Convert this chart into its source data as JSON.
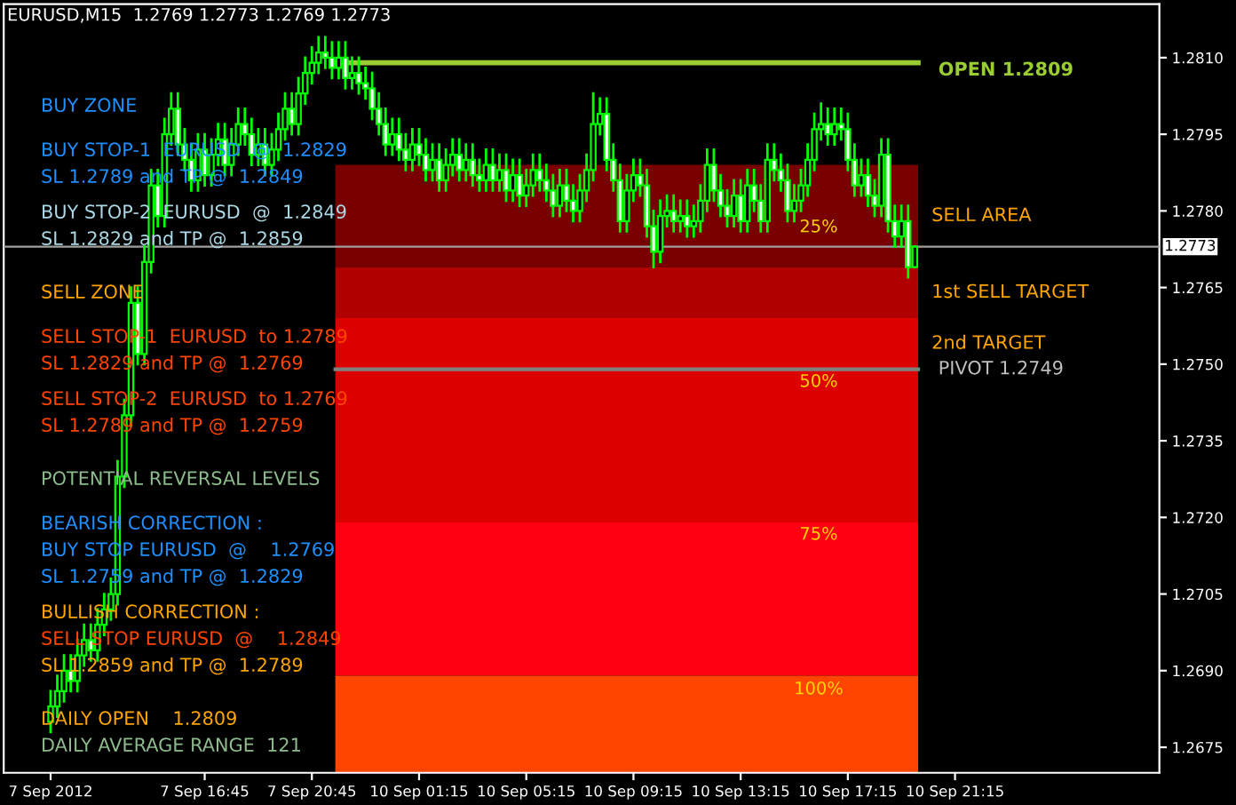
{
  "chart_data": {
    "type": "candlestick",
    "title": "EURUSD,M15  1.2769 1.2773 1.2769 1.2773",
    "categories": [
      "7 Sep 2012",
      null,
      null,
      null,
      null,
      null,
      null,
      null,
      null,
      null,
      null,
      null,
      null,
      null,
      null,
      null,
      null,
      null,
      null,
      null,
      null,
      null,
      null,
      "7 Sep 16:45",
      null,
      null,
      null,
      null,
      null,
      null,
      null,
      null,
      null,
      null,
      null,
      null,
      null,
      null,
      null,
      "7 Sep 20:45",
      null,
      null,
      null,
      null,
      null,
      null,
      null,
      null,
      null,
      null,
      null,
      null,
      null,
      null,
      null,
      "10 Sep 01:15",
      null,
      null,
      null,
      null,
      null,
      null,
      null,
      null,
      null,
      null,
      null,
      null,
      null,
      null,
      null,
      "10 Sep 05:15",
      null,
      null,
      null,
      null,
      null,
      null,
      null,
      null,
      null,
      null,
      null,
      null,
      null,
      null,
      null,
      "10 Sep 09:15",
      null,
      null,
      null,
      null,
      null,
      null,
      null,
      null,
      null,
      null,
      null,
      null,
      null,
      null,
      null,
      "10 Sep 13:15",
      null,
      null,
      null,
      null,
      null,
      null,
      null,
      null,
      null,
      null,
      null,
      null,
      null,
      null,
      null,
      "10 Sep 17:15",
      null,
      null,
      null,
      null,
      null,
      null,
      null,
      null,
      null,
      null,
      null,
      null,
      null,
      null,
      null,
      "10 Sep 21:15",
      null,
      null,
      null,
      null,
      null,
      null,
      null,
      null,
      null,
      null,
      null,
      null,
      null,
      null,
      null,
      null,
      null,
      null,
      null,
      null,
      null,
      null,
      null,
      null,
      null,
      null,
      null,
      null,
      null,
      null
    ],
    "ohlc": [
      [
        1.268,
        1.2686,
        1.2678,
        1.2683
      ],
      [
        1.2683,
        1.2689,
        1.2681,
        1.2686
      ],
      [
        1.2686,
        1.2693,
        1.2684,
        1.269
      ],
      [
        1.269,
        1.2693,
        1.2686,
        1.2688
      ],
      [
        1.2688,
        1.2696,
        1.2686,
        1.2693
      ],
      [
        1.2693,
        1.2699,
        1.2691,
        1.2696
      ],
      [
        1.2696,
        1.2699,
        1.2692,
        1.2694
      ],
      [
        1.2694,
        1.2702,
        1.2692,
        1.2699
      ],
      [
        1.2699,
        1.2705,
        1.2697,
        1.2702
      ],
      [
        1.2702,
        1.2708,
        1.27,
        1.2705
      ],
      [
        1.2705,
        1.2731,
        1.2703,
        1.2728
      ],
      [
        1.2728,
        1.2743,
        1.2726,
        1.274
      ],
      [
        1.274,
        1.2765,
        1.2738,
        1.2762
      ],
      [
        1.2762,
        1.2765,
        1.275,
        1.2752
      ],
      [
        1.2752,
        1.2773,
        1.275,
        1.277
      ],
      [
        1.277,
        1.2788,
        1.2768,
        1.2785
      ],
      [
        1.2785,
        1.2788,
        1.2777,
        1.2779
      ],
      [
        1.2779,
        1.2798,
        1.2777,
        1.2795
      ],
      [
        1.2795,
        1.2803,
        1.2793,
        1.28
      ],
      [
        1.28,
        1.2803,
        1.2791,
        1.2793
      ],
      [
        1.2793,
        1.2796,
        1.2788,
        1.279
      ],
      [
        1.279,
        1.2793,
        1.2784,
        1.2786
      ],
      [
        1.2786,
        1.2795,
        1.2784,
        1.2792
      ],
      [
        1.2792,
        1.2795,
        1.2785,
        1.2787
      ],
      [
        1.2787,
        1.2794,
        1.2785,
        1.2791
      ],
      [
        1.2791,
        1.2797,
        1.2789,
        1.2794
      ],
      [
        1.2794,
        1.2797,
        1.2787,
        1.2789
      ],
      [
        1.2789,
        1.2796,
        1.2787,
        1.2793
      ],
      [
        1.2793,
        1.28,
        1.2791,
        1.2797
      ],
      [
        1.2797,
        1.28,
        1.2793,
        1.2795
      ],
      [
        1.2795,
        1.2798,
        1.2789,
        1.2791
      ],
      [
        1.2791,
        1.2796,
        1.2789,
        1.2793
      ],
      [
        1.2793,
        1.2796,
        1.2787,
        1.2789
      ],
      [
        1.2789,
        1.2795,
        1.2787,
        1.2792
      ],
      [
        1.2792,
        1.2799,
        1.279,
        1.2796
      ],
      [
        1.2796,
        1.2803,
        1.2794,
        1.28
      ],
      [
        1.28,
        1.2803,
        1.2795,
        1.2797
      ],
      [
        1.2797,
        1.2806,
        1.2795,
        1.2803
      ],
      [
        1.2803,
        1.281,
        1.2801,
        1.2807
      ],
      [
        1.2807,
        1.2812,
        1.2805,
        1.2809
      ],
      [
        1.2809,
        1.2814,
        1.2807,
        1.2811
      ],
      [
        1.2811,
        1.2814,
        1.2808,
        1.281
      ],
      [
        1.281,
        1.2813,
        1.2806,
        1.2808
      ],
      [
        1.2808,
        1.2813,
        1.2806,
        1.281
      ],
      [
        1.281,
        1.2813,
        1.2804,
        1.2806
      ],
      [
        1.2806,
        1.281,
        1.2804,
        1.2807
      ],
      [
        1.2807,
        1.281,
        1.2803,
        1.2805
      ],
      [
        1.2805,
        1.2808,
        1.2802,
        1.2804
      ],
      [
        1.2804,
        1.2807,
        1.2798,
        1.28
      ],
      [
        1.28,
        1.2803,
        1.2795,
        1.2797
      ],
      [
        1.2797,
        1.28,
        1.2791,
        1.2793
      ],
      [
        1.2793,
        1.2798,
        1.2791,
        1.2795
      ],
      [
        1.2795,
        1.2798,
        1.279,
        1.2792
      ],
      [
        1.2792,
        1.2795,
        1.2788,
        1.279
      ],
      [
        1.279,
        1.2796,
        1.2788,
        1.2793
      ],
      [
        1.2793,
        1.2796,
        1.2789,
        1.2791
      ],
      [
        1.2791,
        1.2794,
        1.2786,
        1.2788
      ],
      [
        1.2788,
        1.2793,
        1.2786,
        1.279
      ],
      [
        1.279,
        1.2793,
        1.2784,
        1.2786
      ],
      [
        1.2786,
        1.2792,
        1.2784,
        1.2789
      ],
      [
        1.2789,
        1.2794,
        1.2787,
        1.2791
      ],
      [
        1.2791,
        1.2794,
        1.2786,
        1.2788
      ],
      [
        1.2788,
        1.2793,
        1.2786,
        1.279
      ],
      [
        1.279,
        1.2793,
        1.2785,
        1.2787
      ],
      [
        1.2787,
        1.279,
        1.2784,
        1.2786
      ],
      [
        1.2786,
        1.2792,
        1.2784,
        1.2789
      ],
      [
        1.2789,
        1.2792,
        1.2784,
        1.2786
      ],
      [
        1.2786,
        1.2791,
        1.2784,
        1.2788
      ],
      [
        1.2788,
        1.2791,
        1.2782,
        1.2784
      ],
      [
        1.2784,
        1.279,
        1.2782,
        1.2787
      ],
      [
        1.2787,
        1.279,
        1.2781,
        1.2783
      ],
      [
        1.2783,
        1.2788,
        1.2781,
        1.2785
      ],
      [
        1.2785,
        1.2791,
        1.2783,
        1.2788
      ],
      [
        1.2788,
        1.2791,
        1.2784,
        1.2786
      ],
      [
        1.2786,
        1.2789,
        1.2782,
        1.2784
      ],
      [
        1.2784,
        1.2787,
        1.2779,
        1.2781
      ],
      [
        1.2781,
        1.2788,
        1.2779,
        1.2785
      ],
      [
        1.2785,
        1.2788,
        1.278,
        1.2782
      ],
      [
        1.2782,
        1.2785,
        1.2778,
        1.278
      ],
      [
        1.278,
        1.2787,
        1.2778,
        1.2784
      ],
      [
        1.2784,
        1.2791,
        1.2782,
        1.2788
      ],
      [
        1.2788,
        1.2803,
        1.2786,
        1.2797
      ],
      [
        1.2797,
        1.2802,
        1.2795,
        1.2799
      ],
      [
        1.2799,
        1.2802,
        1.2788,
        1.279
      ],
      [
        1.279,
        1.2793,
        1.2784,
        1.2786
      ],
      [
        1.2786,
        1.2789,
        1.2776,
        1.2778
      ],
      [
        1.2778,
        1.2787,
        1.2776,
        1.2784
      ],
      [
        1.2784,
        1.279,
        1.2782,
        1.2787
      ],
      [
        1.2787,
        1.279,
        1.2783,
        1.2785
      ],
      [
        1.2785,
        1.2788,
        1.2775,
        1.2777
      ],
      [
        1.2777,
        1.278,
        1.2769,
        1.2772
      ],
      [
        1.2772,
        1.2782,
        1.277,
        1.2779
      ],
      [
        1.2779,
        1.2783,
        1.2777,
        1.278
      ],
      [
        1.278,
        1.2783,
        1.2776,
        1.2778
      ],
      [
        1.2778,
        1.2782,
        1.2776,
        1.2779
      ],
      [
        1.2779,
        1.2782,
        1.2775,
        1.2777
      ],
      [
        1.2777,
        1.2781,
        1.2775,
        1.2778
      ],
      [
        1.2778,
        1.2785,
        1.2776,
        1.2782
      ],
      [
        1.2782,
        1.2792,
        1.278,
        1.2789
      ],
      [
        1.2789,
        1.2792,
        1.2782,
        1.2784
      ],
      [
        1.2784,
        1.2787,
        1.2779,
        1.2781
      ],
      [
        1.2781,
        1.2784,
        1.2777,
        1.2779
      ],
      [
        1.2779,
        1.2786,
        1.2777,
        1.2783
      ],
      [
        1.2783,
        1.2786,
        1.2776,
        1.2778
      ],
      [
        1.2778,
        1.2788,
        1.2776,
        1.2785
      ],
      [
        1.2785,
        1.2788,
        1.278,
        1.2782
      ],
      [
        1.2782,
        1.2785,
        1.2776,
        1.2778
      ],
      [
        1.2778,
        1.2793,
        1.2776,
        1.279
      ],
      [
        1.279,
        1.2793,
        1.2786,
        1.2788
      ],
      [
        1.2788,
        1.2791,
        1.2784,
        1.2786
      ],
      [
        1.2786,
        1.2789,
        1.2778,
        1.278
      ],
      [
        1.278,
        1.2785,
        1.2778,
        1.2782
      ],
      [
        1.2782,
        1.2788,
        1.278,
        1.2785
      ],
      [
        1.2785,
        1.2793,
        1.2783,
        1.279
      ],
      [
        1.279,
        1.2799,
        1.2788,
        1.2796
      ],
      [
        1.2796,
        1.2801,
        1.2794,
        1.2797
      ],
      [
        1.2797,
        1.28,
        1.2793,
        1.2795
      ],
      [
        1.2795,
        1.28,
        1.2793,
        1.2797
      ],
      [
        1.2797,
        1.28,
        1.2794,
        1.2796
      ],
      [
        1.2796,
        1.2799,
        1.2788,
        1.279
      ],
      [
        1.279,
        1.2793,
        1.2783,
        1.2785
      ],
      [
        1.2785,
        1.279,
        1.2783,
        1.2787
      ],
      [
        1.2787,
        1.279,
        1.2781,
        1.2783
      ],
      [
        1.2783,
        1.2786,
        1.2779,
        1.2781
      ],
      [
        1.2781,
        1.2794,
        1.2779,
        1.2791
      ],
      [
        1.2791,
        1.2794,
        1.2776,
        1.2778
      ],
      [
        1.2778,
        1.2781,
        1.2773,
        1.2775
      ],
      [
        1.2775,
        1.2781,
        1.2773,
        1.2778
      ],
      [
        1.2778,
        1.2781,
        1.2767,
        1.2769
      ],
      [
        1.2769,
        1.2773,
        1.2769,
        1.2773
      ],
      null,
      null,
      null,
      null,
      null,
      null,
      null,
      null,
      null,
      null,
      null,
      null,
      null,
      null,
      null,
      null,
      null,
      null,
      null,
      null,
      null,
      null,
      null,
      null,
      null,
      null,
      null,
      null,
      null,
      null,
      null,
      null,
      null,
      null,
      null,
      null
    ],
    "ylim": [
      1.267,
      1.28205
    ],
    "yticks": [
      {
        "value": 1.281,
        "label": "1.2810"
      },
      1.2795,
      {
        "value": 1.278,
        "label": "1.2780"
      },
      1.2765,
      {
        "value": 1.275,
        "label": "1.2750"
      },
      1.2735,
      {
        "value": 1.272,
        "label": "1.2720"
      },
      1.2705,
      {
        "value": 1.269,
        "label": "1.2690"
      },
      1.2675
    ],
    "bands": [
      {
        "axis": "y",
        "from": 1.2769,
        "to": 1.2789,
        "label": "SELL AREA",
        "color": "#780000"
      },
      {
        "axis": "y",
        "from": 1.2759,
        "to": 1.2769,
        "label": "1st SELL TARGET",
        "color": "#b00000"
      },
      {
        "axis": "y",
        "from": 1.2749,
        "to": 1.2759,
        "label": "2nd TARGET",
        "color": "#dd0000"
      },
      {
        "axis": "y",
        "from": 1.2719,
        "to": 1.2749,
        "color": "#dd0000"
      },
      {
        "axis": "y",
        "from": 1.2689,
        "to": 1.2719,
        "color": "#ff0010"
      },
      {
        "axis": "y",
        "from": 1.267,
        "to": 1.2689,
        "color": "#ff4500"
      }
    ],
    "ref_lines": [
      {
        "axis": "y",
        "value": 1.2809,
        "label": "OPEN 1.2809",
        "color": "#9acd32"
      },
      {
        "axis": "y",
        "value": 1.2749,
        "label": "PIVOT 1.2749",
        "color": "#808080"
      },
      {
        "axis": "y",
        "value": 1.2773,
        "label": "1.2773",
        "color": "#a0a0a0"
      }
    ],
    "annotations": [
      "25%",
      "50%",
      "75%",
      "100%",
      "BUY ZONE",
      "BUY STOP-1  EURUSD  @  1.2829",
      "SL 1.2789 and TP @  1.2849",
      "BUY STOP-2  EURUSD  @  1.2849",
      "SL 1.2829 and TP @  1.2859",
      "SELL ZONE",
      "SELL STOP-1  EURUSD  to 1.2789",
      "SL 1.2829 and TP @  1.2769",
      "SELL STOP-2  EURUSD  to 1.2769",
      "SL 1.2789 and TP @  1.2759",
      "POTENTIAL REVERSAL LEVELS",
      "BEARISH CORRECTION :",
      "BUY STOP EURUSD  @    1.2769",
      "SL 1.2759 and TP @  1.2829",
      "BULLISH CORRECTION :",
      "SELL STOP EURUSD  @    1.2849",
      "SL 1.2859 and TP @  1.2789",
      "DAILY OPEN    1.2809",
      "DAILY AVERAGE RANGE  121"
    ],
    "grid": false,
    "legend": false
  }
}
